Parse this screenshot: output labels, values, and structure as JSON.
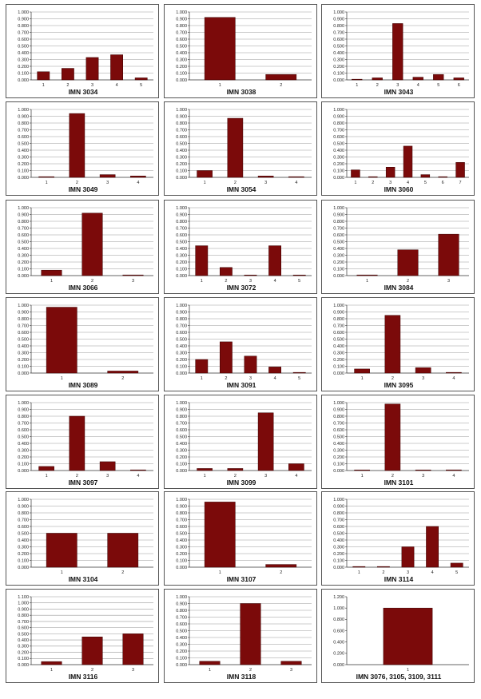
{
  "chart_data": [
    {
      "type": "bar",
      "title": "IMN 3034",
      "categories": [
        "1",
        "2",
        "3",
        "4",
        "5"
      ],
      "values": [
        0.12,
        0.17,
        0.33,
        0.37,
        0.03
      ],
      "ylim": [
        0,
        1
      ],
      "yticks": [
        "0.000",
        "0.100",
        "0.200",
        "0.300",
        "0.400",
        "0.500",
        "0.600",
        "0.700",
        "0.800",
        "0.900",
        "1.000"
      ],
      "grid": true,
      "bar_color": "#7b0a0a"
    },
    {
      "type": "bar",
      "title": "IMN 3038",
      "categories": [
        "1",
        "2"
      ],
      "values": [
        0.92,
        0.08
      ],
      "ylim": [
        0,
        1
      ],
      "yticks": [
        "0.000",
        "0.100",
        "0.200",
        "0.300",
        "0.400",
        "0.500",
        "0.600",
        "0.700",
        "0.800",
        "0.900",
        "1.000"
      ],
      "grid": true,
      "bar_color": "#7b0a0a"
    },
    {
      "type": "bar",
      "title": "IMN 3043",
      "categories": [
        "1",
        "2",
        "3",
        "4",
        "5",
        "6"
      ],
      "values": [
        0.01,
        0.03,
        0.83,
        0.04,
        0.08,
        0.03
      ],
      "ylim": [
        0,
        1
      ],
      "yticks": [
        "0.000",
        "0.100",
        "0.200",
        "0.300",
        "0.400",
        "0.500",
        "0.600",
        "0.700",
        "0.800",
        "0.900",
        "1.000"
      ],
      "grid": true,
      "bar_color": "#7b0a0a"
    },
    {
      "type": "bar",
      "title": "IMN 3049",
      "categories": [
        "1",
        "2",
        "3",
        "4"
      ],
      "values": [
        0.01,
        0.94,
        0.04,
        0.02
      ],
      "ylim": [
        0,
        1
      ],
      "yticks": [
        "0.000",
        "0.100",
        "0.200",
        "0.300",
        "0.400",
        "0.500",
        "0.600",
        "0.700",
        "0.800",
        "0.900",
        "1.000"
      ],
      "grid": true,
      "bar_color": "#7b0a0a"
    },
    {
      "type": "bar",
      "title": "IMN 3054",
      "categories": [
        "1",
        "2",
        "3",
        "4"
      ],
      "values": [
        0.1,
        0.87,
        0.02,
        0.01
      ],
      "ylim": [
        0,
        1
      ],
      "yticks": [
        "0.000",
        "0.100",
        "0.200",
        "0.300",
        "0.400",
        "0.500",
        "0.600",
        "0.700",
        "0.800",
        "0.900",
        "1.000"
      ],
      "grid": true,
      "bar_color": "#7b0a0a"
    },
    {
      "type": "bar",
      "title": "",
      "categories": [
        "1",
        "2",
        "3",
        "4",
        "5",
        "6",
        "7"
      ],
      "values": [
        0.11,
        0.01,
        0.15,
        0.46,
        0.04,
        0.01,
        0.22
      ],
      "ylim": [
        0,
        1
      ],
      "yticks": [
        "0.000",
        "0.100",
        "0.200",
        "0.300",
        "0.400",
        "0.500",
        "0.600",
        "0.700",
        "0.800",
        "0.900",
        "1.000"
      ],
      "grid": true,
      "bar_color": "#7b0a0a",
      "caption": "IMN 3060"
    },
    {
      "type": "bar",
      "title": "IMN 3066",
      "categories": [
        "1",
        "2",
        "3"
      ],
      "values": [
        0.08,
        0.92,
        0.01
      ],
      "ylim": [
        0,
        1
      ],
      "yticks": [
        "0.000",
        "0.100",
        "0.200",
        "0.300",
        "0.400",
        "0.500",
        "0.600",
        "0.700",
        "0.800",
        "0.900",
        "1.000"
      ],
      "grid": true,
      "bar_color": "#7b0a0a"
    },
    {
      "type": "bar",
      "title": "IMN 3072",
      "categories": [
        "1",
        "2",
        "3",
        "4",
        "5"
      ],
      "values": [
        0.44,
        0.12,
        0.0,
        0.44,
        0.0
      ],
      "ylim": [
        0,
        1
      ],
      "yticks": [
        "0.000",
        "0.100",
        "0.200",
        "0.300",
        "0.400",
        "0.500",
        "0.600",
        "0.700",
        "0.800",
        "0.900",
        "1.000"
      ],
      "grid": true,
      "bar_color": "#7b0a0a"
    },
    {
      "type": "bar",
      "title": "IMN 3084",
      "categories": [
        "1",
        "2",
        "3"
      ],
      "values": [
        0.01,
        0.38,
        0.61
      ],
      "ylim": [
        0,
        1
      ],
      "yticks": [
        "0.000",
        "0.100",
        "0.200",
        "0.300",
        "0.400",
        "0.500",
        "0.600",
        "0.700",
        "0.800",
        "0.900",
        "1.000"
      ],
      "grid": true,
      "bar_color": "#7b0a0a"
    },
    {
      "type": "bar",
      "title": "IMN 3089",
      "categories": [
        "1",
        "2"
      ],
      "values": [
        0.97,
        0.03
      ],
      "ylim": [
        0,
        1
      ],
      "yticks": [
        "0.000",
        "0.100",
        "0.200",
        "0.300",
        "0.400",
        "0.500",
        "0.600",
        "0.700",
        "0.800",
        "0.900",
        "1.000"
      ],
      "grid": true,
      "bar_color": "#7b0a0a"
    },
    {
      "type": "bar",
      "title": "IMN 3091",
      "categories": [
        "1",
        "2",
        "3",
        "4",
        "5"
      ],
      "values": [
        0.2,
        0.46,
        0.25,
        0.09,
        0.01
      ],
      "ylim": [
        0,
        1
      ],
      "yticks": [
        "0.000",
        "0.100",
        "0.200",
        "0.300",
        "0.400",
        "0.500",
        "0.600",
        "0.700",
        "0.800",
        "0.900",
        "1.000"
      ],
      "grid": true,
      "bar_color": "#7b0a0a"
    },
    {
      "type": "bar",
      "title": "IMN 3095",
      "categories": [
        "1",
        "2",
        "3",
        "4"
      ],
      "values": [
        0.06,
        0.85,
        0.08,
        0.01
      ],
      "ylim": [
        0,
        1
      ],
      "yticks": [
        "0.000",
        "0.100",
        "0.200",
        "0.300",
        "0.400",
        "0.500",
        "0.600",
        "0.700",
        "0.800",
        "0.900",
        "1.000"
      ],
      "grid": true,
      "bar_color": "#7b0a0a"
    },
    {
      "type": "bar",
      "title": "IMN 3097",
      "categories": [
        "1",
        "2",
        "3",
        "4"
      ],
      "values": [
        0.06,
        0.8,
        0.13,
        0.01
      ],
      "ylim": [
        0,
        1
      ],
      "yticks": [
        "0.000",
        "0.100",
        "0.200",
        "0.300",
        "0.400",
        "0.500",
        "0.600",
        "0.700",
        "0.800",
        "0.900",
        "1.000"
      ],
      "grid": true,
      "bar_color": "#7b0a0a"
    },
    {
      "type": "bar",
      "title": "IMN 3099",
      "categories": [
        "1",
        "2",
        "3",
        "4"
      ],
      "values": [
        0.03,
        0.03,
        0.85,
        0.1
      ],
      "ylim": [
        0,
        1
      ],
      "yticks": [
        "0.000",
        "0.100",
        "0.200",
        "0.300",
        "0.400",
        "0.500",
        "0.600",
        "0.700",
        "0.800",
        "0.900",
        "1.000"
      ],
      "grid": true,
      "bar_color": "#7b0a0a"
    },
    {
      "type": "bar",
      "title": "IMN 3101",
      "categories": [
        "1",
        "2",
        "3",
        "4"
      ],
      "values": [
        0.0,
        0.98,
        0.0,
        0.01
      ],
      "ylim": [
        0,
        1
      ],
      "yticks": [
        "0.000",
        "0.100",
        "0.200",
        "0.300",
        "0.400",
        "0.500",
        "0.600",
        "0.700",
        "0.800",
        "0.900",
        "1.000"
      ],
      "grid": true,
      "bar_color": "#7b0a0a"
    },
    {
      "type": "bar",
      "title": "IMN 3104",
      "categories": [
        "1",
        "2"
      ],
      "values": [
        0.5,
        0.5
      ],
      "ylim": [
        0,
        1
      ],
      "yticks": [
        "0.000",
        "0.100",
        "0.200",
        "0.300",
        "0.400",
        "0.500",
        "0.600",
        "0.700",
        "0.800",
        "0.900",
        "1.000"
      ],
      "grid": true,
      "bar_color": "#7b0a0a"
    },
    {
      "type": "bar",
      "title": "IMN 3107",
      "categories": [
        "1",
        "2"
      ],
      "values": [
        0.96,
        0.04
      ],
      "ylim": [
        0,
        1
      ],
      "yticks": [
        "0.000",
        "0.100",
        "0.200",
        "0.300",
        "0.400",
        "0.500",
        "0.600",
        "0.700",
        "0.800",
        "0.900",
        "1.000"
      ],
      "grid": true,
      "bar_color": "#7b0a0a"
    },
    {
      "type": "bar",
      "title": "IMN 3114",
      "categories": [
        "1",
        "2",
        "3",
        "4",
        "5"
      ],
      "values": [
        0.01,
        0.01,
        0.3,
        0.6,
        0.06
      ],
      "ylim": [
        0,
        1
      ],
      "yticks": [
        "0.000",
        "0.100",
        "0.200",
        "0.300",
        "0.400",
        "0.500",
        "0.600",
        "0.700",
        "0.800",
        "0.900",
        "1.000"
      ],
      "grid": true,
      "bar_color": "#7b0a0a"
    },
    {
      "type": "bar",
      "title": "IMN 3116",
      "categories": [
        "1",
        "2",
        "3"
      ],
      "values": [
        0.05,
        0.45,
        0.5
      ],
      "ylim": [
        0,
        1.1
      ],
      "yticks": [
        "0.000",
        "0.100",
        "0.200",
        "0.300",
        "0.400",
        "0.500",
        "0.600",
        "0.700",
        "0.800",
        "0.900",
        "1.000",
        "1.100"
      ],
      "grid": true,
      "bar_color": "#7b0a0a"
    },
    {
      "type": "bar",
      "title": "IMN 3118",
      "categories": [
        "1",
        "2",
        "3"
      ],
      "values": [
        0.05,
        0.9,
        0.05
      ],
      "ylim": [
        0,
        1
      ],
      "yticks": [
        "0.000",
        "0.100",
        "0.200",
        "0.300",
        "0.400",
        "0.500",
        "0.600",
        "0.700",
        "0.800",
        "0.900",
        "1.000"
      ],
      "grid": true,
      "bar_color": "#7b0a0a"
    },
    {
      "type": "bar",
      "title": "IMN 3076, 3105, 3109, 3111",
      "categories": [
        "1"
      ],
      "values": [
        1.0
      ],
      "ylim": [
        0,
        1.2
      ],
      "yticks": [
        "0.000",
        "0.200",
        "0.400",
        "0.600",
        "0.800",
        "1.000",
        "1.200"
      ],
      "grid": false,
      "bar_color": "#7b0a0a"
    }
  ]
}
